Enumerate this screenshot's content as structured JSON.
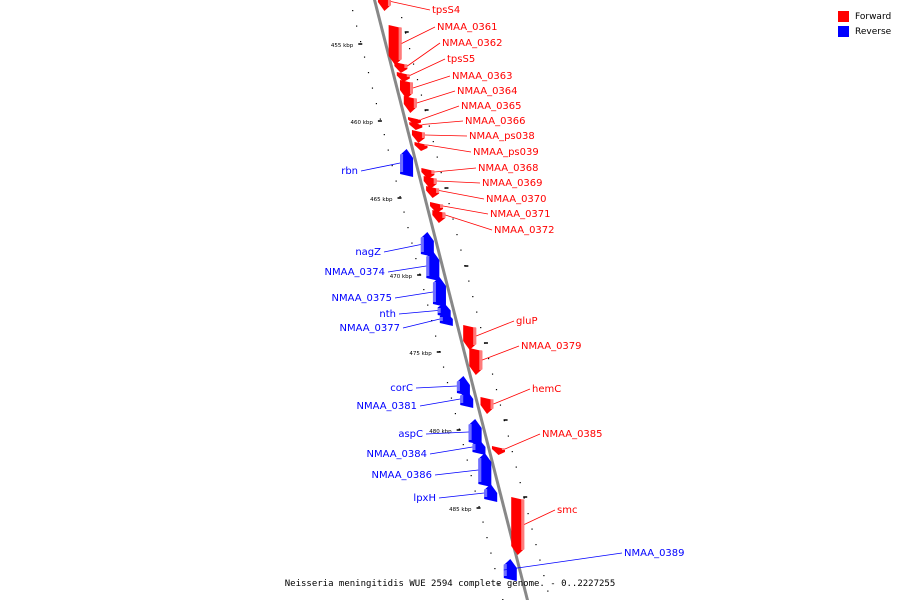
{
  "caption": "Neisseria meningitidis WUE 2594 complete genome. - 0..2227255",
  "legend": {
    "items": [
      {
        "label": "Forward",
        "color": "#ff0000"
      },
      {
        "label": "Reverse",
        "color": "#0000ff"
      }
    ]
  },
  "colors": {
    "forward": "#ff0000",
    "reverse": "#0000ff",
    "axis": "#888888",
    "tick": "#000000"
  },
  "scale_labels": [
    "455 kbp",
    "460 kbp",
    "465 kbp",
    "470 kbp",
    "475 kbp",
    "480 kbp",
    "485 kbp"
  ],
  "genes": [
    {
      "name": "tpsS4",
      "strand": "forward"
    },
    {
      "name": "NMAA_0361",
      "strand": "forward"
    },
    {
      "name": "NMAA_0362",
      "strand": "forward"
    },
    {
      "name": "tpsS5",
      "strand": "forward"
    },
    {
      "name": "NMAA_0363",
      "strand": "forward"
    },
    {
      "name": "NMAA_0364",
      "strand": "forward"
    },
    {
      "name": "NMAA_0365",
      "strand": "forward"
    },
    {
      "name": "NMAA_0366",
      "strand": "forward"
    },
    {
      "name": "NMAA_ps038",
      "strand": "forward"
    },
    {
      "name": "NMAA_ps039",
      "strand": "forward"
    },
    {
      "name": "NMAA_0368",
      "strand": "forward"
    },
    {
      "name": "NMAA_0369",
      "strand": "forward"
    },
    {
      "name": "NMAA_0370",
      "strand": "forward"
    },
    {
      "name": "NMAA_0371",
      "strand": "forward"
    },
    {
      "name": "NMAA_0372",
      "strand": "forward"
    },
    {
      "name": "rbn",
      "strand": "reverse"
    },
    {
      "name": "nagZ",
      "strand": "reverse"
    },
    {
      "name": "NMAA_0374",
      "strand": "reverse"
    },
    {
      "name": "NMAA_0375",
      "strand": "reverse"
    },
    {
      "name": "nth",
      "strand": "reverse"
    },
    {
      "name": "NMAA_0377",
      "strand": "reverse"
    },
    {
      "name": "gluP",
      "strand": "forward"
    },
    {
      "name": "NMAA_0379",
      "strand": "forward"
    },
    {
      "name": "hemC",
      "strand": "forward"
    },
    {
      "name": "corC",
      "strand": "reverse"
    },
    {
      "name": "NMAA_0381",
      "strand": "reverse"
    },
    {
      "name": "aspC",
      "strand": "reverse"
    },
    {
      "name": "NMAA_0384",
      "strand": "reverse"
    },
    {
      "name": "NMAA_0385",
      "strand": "forward"
    },
    {
      "name": "NMAA_0386",
      "strand": "reverse"
    },
    {
      "name": "lpxH",
      "strand": "reverse"
    },
    {
      "name": "smc",
      "strand": "forward"
    },
    {
      "name": "NMAA_0389",
      "strand": "reverse"
    }
  ]
}
